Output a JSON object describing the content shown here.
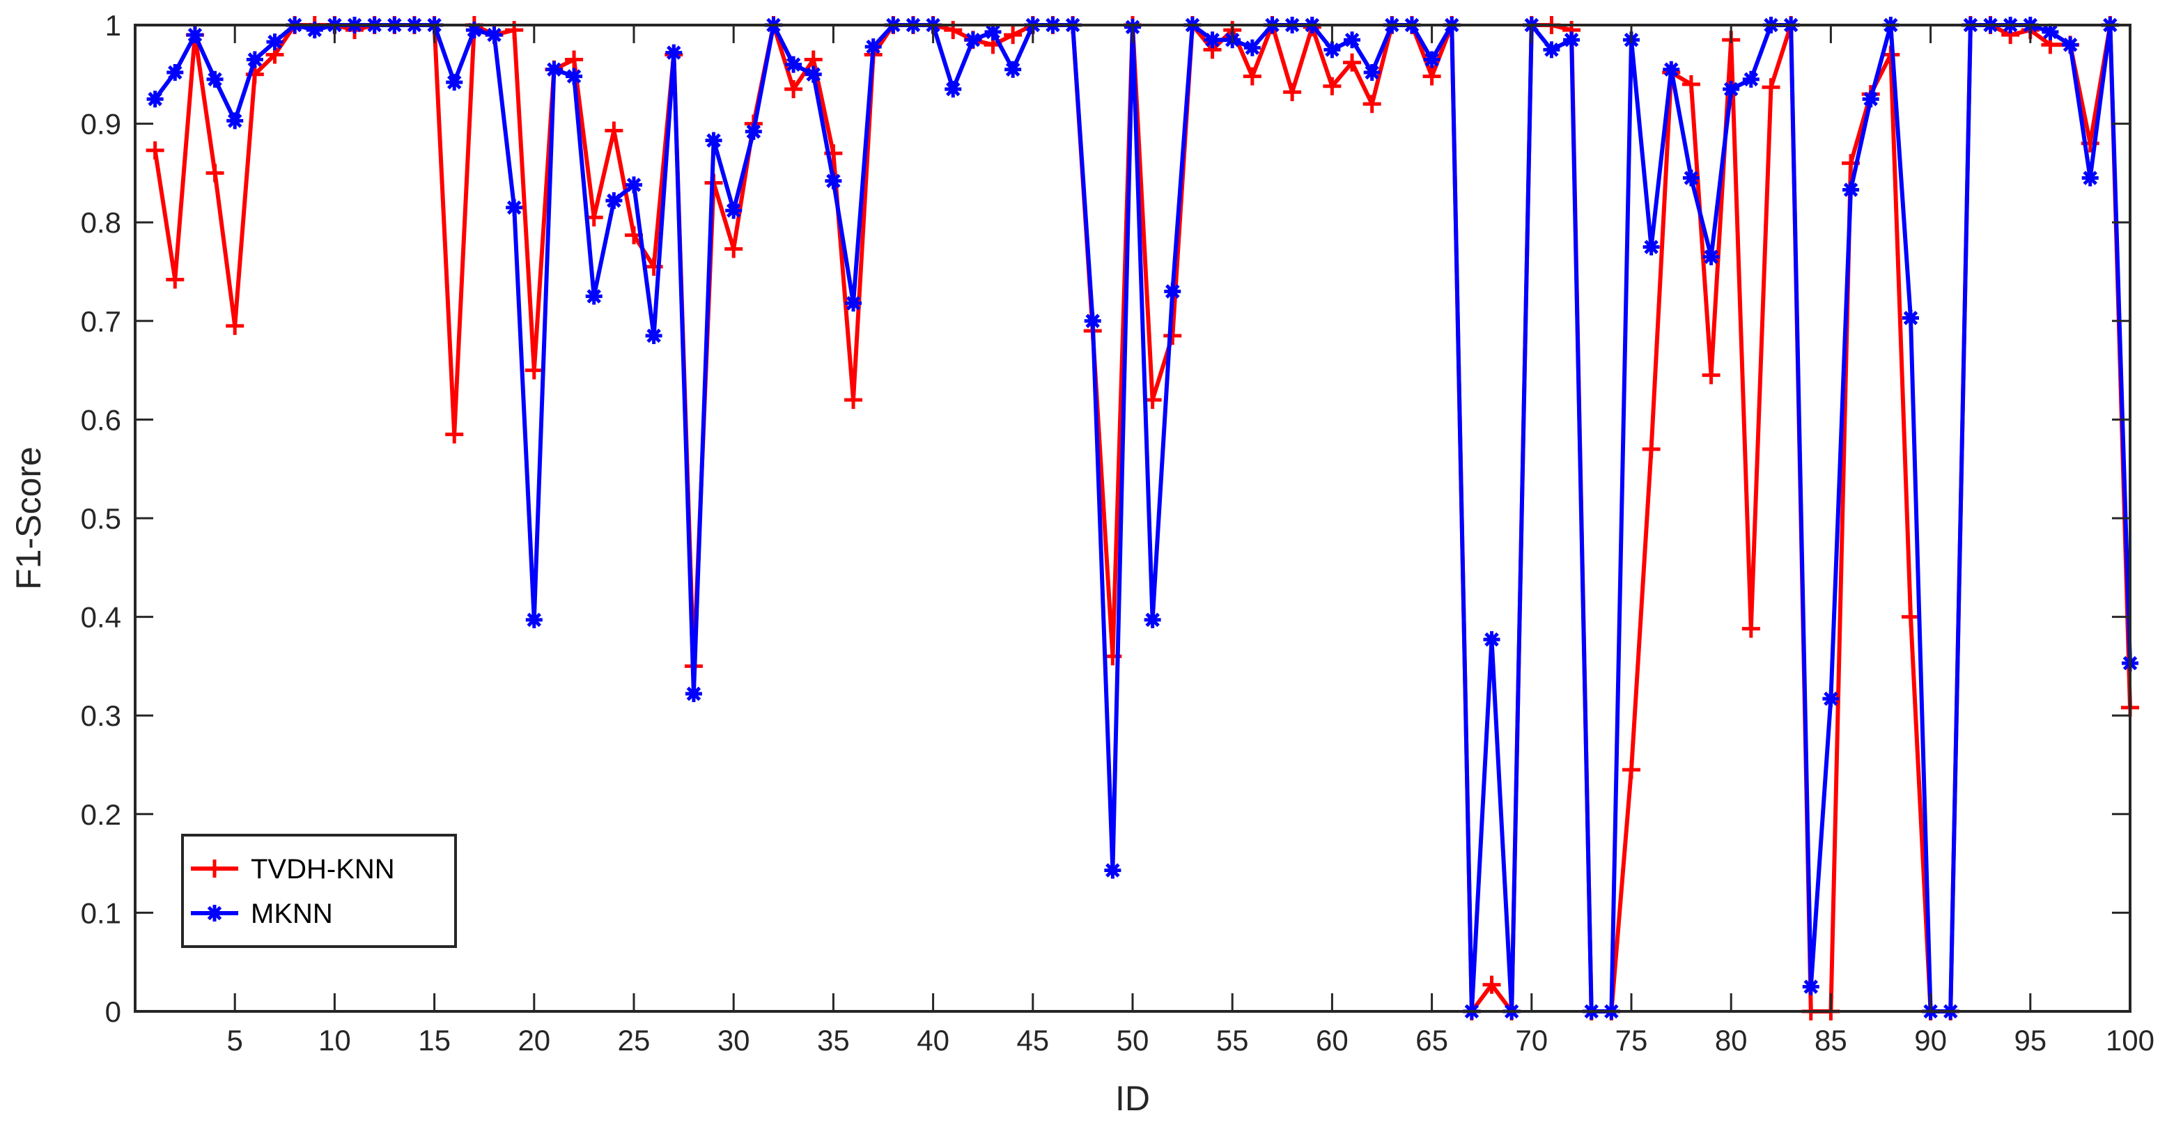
{
  "chart_data": {
    "type": "line",
    "xlabel": "ID",
    "ylabel": "F1-Score",
    "xlim": [
      0,
      100
    ],
    "ylim": [
      0,
      1
    ],
    "xticks": [
      5,
      10,
      15,
      20,
      25,
      30,
      35,
      40,
      45,
      50,
      55,
      60,
      65,
      70,
      75,
      80,
      85,
      90,
      95,
      100
    ],
    "yticks": [
      0,
      0.1,
      0.2,
      0.3,
      0.4,
      0.5,
      0.6,
      0.7,
      0.8,
      0.9,
      1
    ],
    "ytick_labels": [
      "0",
      "0.1",
      "0.2",
      "0.3",
      "0.4",
      "0.5",
      "0.6",
      "0.7",
      "0.8",
      "0.9",
      "1"
    ],
    "grid": false,
    "legend_position": "bottom-left",
    "x": [
      1,
      2,
      3,
      4,
      5,
      6,
      7,
      8,
      9,
      10,
      11,
      12,
      13,
      14,
      15,
      16,
      17,
      18,
      19,
      20,
      21,
      22,
      23,
      24,
      25,
      26,
      27,
      28,
      29,
      30,
      31,
      32,
      33,
      34,
      35,
      36,
      37,
      38,
      39,
      40,
      41,
      42,
      43,
      44,
      45,
      46,
      47,
      48,
      49,
      50,
      51,
      52,
      53,
      54,
      55,
      56,
      57,
      58,
      59,
      60,
      61,
      62,
      63,
      64,
      65,
      66,
      67,
      68,
      69,
      70,
      71,
      72,
      73,
      74,
      75,
      76,
      77,
      78,
      79,
      80,
      81,
      82,
      83,
      84,
      85,
      86,
      87,
      88,
      89,
      90,
      91,
      92,
      93,
      94,
      95,
      96,
      97,
      98,
      99,
      100
    ],
    "series": [
      {
        "name": "TVDH-KNN",
        "color": "#ff0000",
        "marker": "plus",
        "values": [
          0.873,
          0.742,
          0.99,
          0.85,
          0.695,
          0.95,
          0.97,
          1.0,
          1.0,
          1.0,
          0.995,
          1.0,
          1.0,
          1.0,
          1.0,
          0.585,
          1.0,
          0.99,
          0.995,
          0.65,
          0.955,
          0.965,
          0.805,
          0.893,
          0.787,
          0.755,
          0.97,
          0.35,
          0.84,
          0.773,
          0.9,
          1.0,
          0.935,
          0.965,
          0.87,
          0.62,
          0.97,
          1.0,
          1.0,
          1.0,
          0.995,
          0.985,
          0.98,
          0.99,
          1.0,
          1.0,
          1.0,
          0.69,
          0.36,
          1.0,
          0.62,
          0.685,
          1.0,
          0.975,
          0.995,
          0.948,
          1.0,
          0.932,
          0.998,
          0.938,
          0.962,
          0.92,
          1.0,
          1.0,
          0.948,
          1.0,
          0.0,
          0.027,
          0.0,
          1.0,
          1.0,
          0.995,
          0.0,
          0.0,
          0.245,
          0.57,
          0.952,
          0.94,
          0.645,
          0.985,
          0.388,
          0.937,
          1.0,
          0.0,
          0.0,
          0.86,
          0.93,
          0.97,
          0.4,
          0.0,
          0.0,
          1.0,
          1.0,
          0.99,
          0.995,
          0.98,
          0.98,
          0.88,
          1.0,
          0.308
        ]
      },
      {
        "name": "MKNN",
        "color": "#0000ff",
        "marker": "star",
        "values": [
          0.925,
          0.952,
          0.99,
          0.945,
          0.903,
          0.965,
          0.983,
          1.0,
          0.995,
          1.0,
          1.0,
          1.0,
          1.0,
          1.0,
          1.0,
          0.942,
          0.995,
          0.99,
          0.815,
          0.397,
          0.955,
          0.948,
          0.725,
          0.822,
          0.838,
          0.685,
          0.972,
          0.322,
          0.883,
          0.812,
          0.892,
          1.0,
          0.96,
          0.95,
          0.842,
          0.718,
          0.978,
          1.0,
          1.0,
          1.0,
          0.935,
          0.985,
          0.993,
          0.955,
          1.0,
          1.0,
          1.0,
          0.7,
          0.143,
          0.998,
          0.397,
          0.73,
          1.0,
          0.985,
          0.985,
          0.977,
          1.0,
          1.0,
          1.0,
          0.975,
          0.985,
          0.952,
          1.0,
          1.0,
          0.965,
          1.0,
          0.0,
          0.377,
          0.0,
          1.0,
          0.975,
          0.985,
          0.0,
          0.0,
          0.985,
          0.775,
          0.955,
          0.845,
          0.765,
          0.935,
          0.945,
          1.0,
          1.0,
          0.025,
          0.317,
          0.833,
          0.925,
          1.0,
          0.703,
          0.0,
          0.0,
          1.0,
          1.0,
          1.0,
          1.0,
          0.993,
          0.98,
          0.845,
          1.0,
          0.353
        ]
      }
    ]
  }
}
